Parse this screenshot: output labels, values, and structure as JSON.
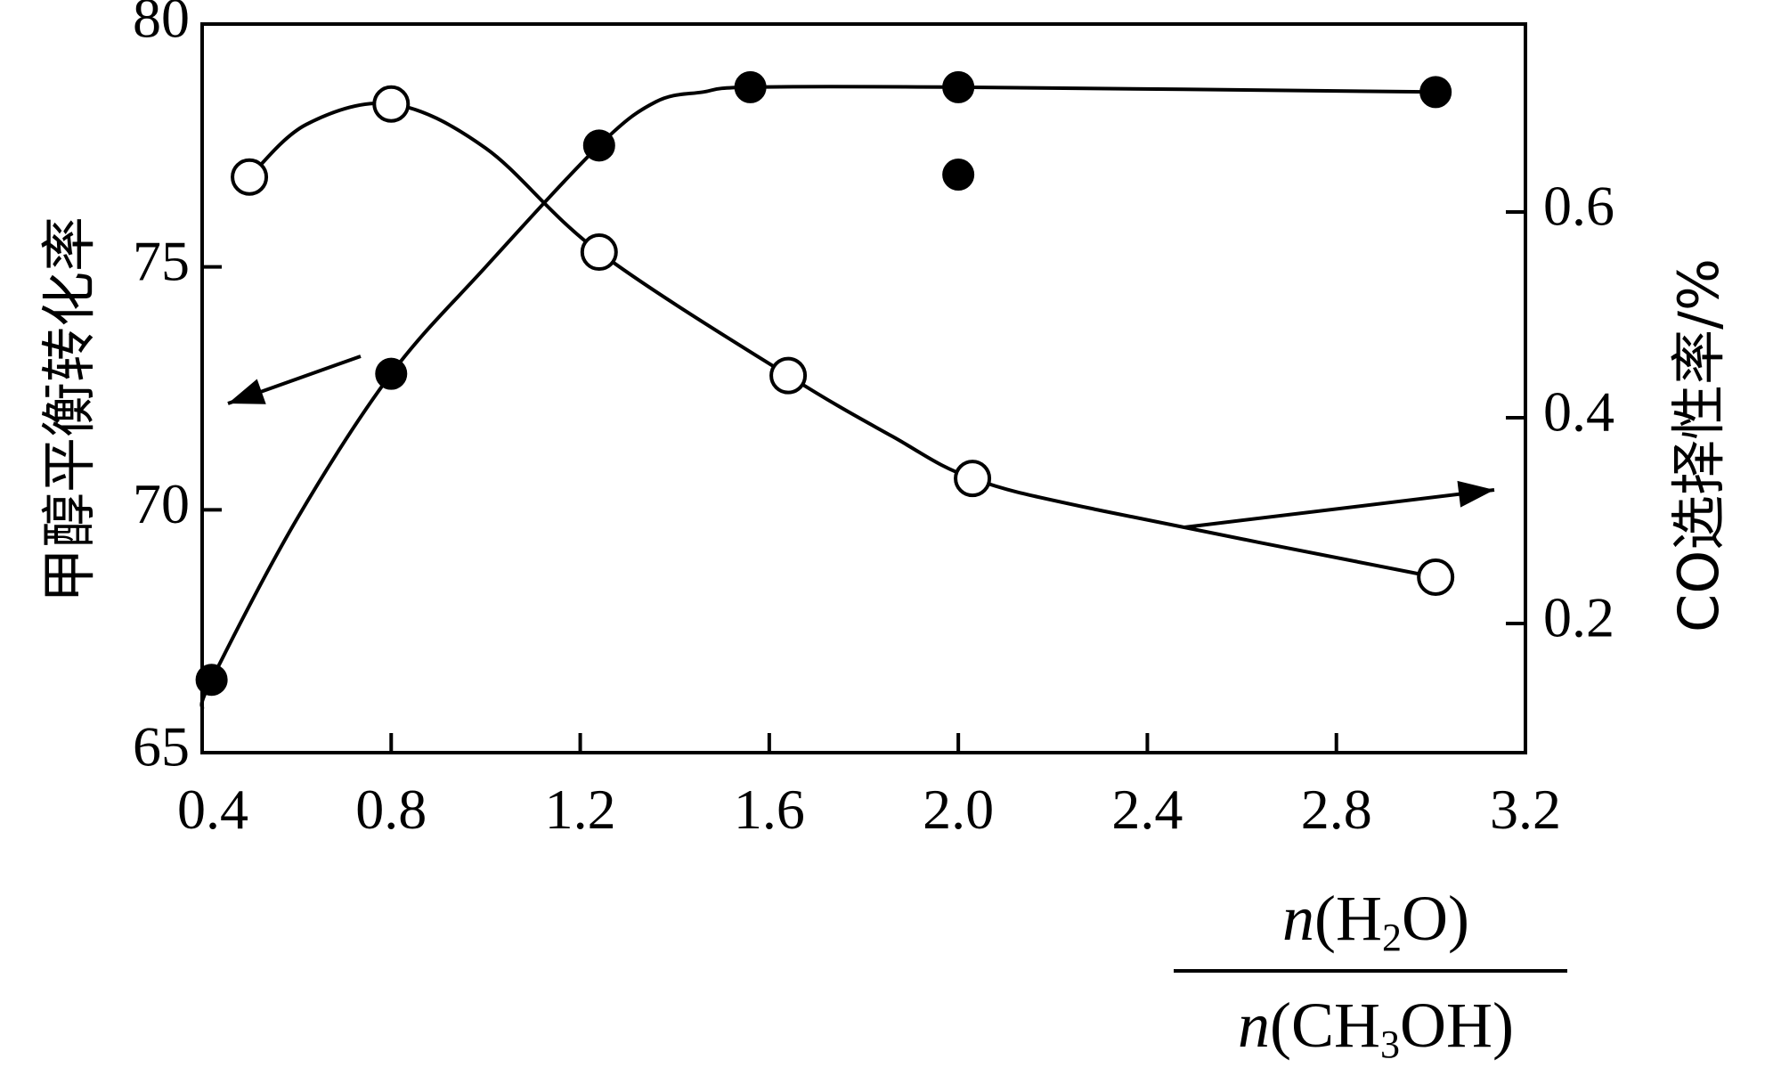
{
  "chart_data": {
    "type": "line",
    "x_label": {
      "numerator": {
        "n": "n",
        "open": "(H",
        "sub": "2",
        "close": "O)"
      },
      "denominator": {
        "n": "n",
        "open": "(CH",
        "sub": "3",
        "close": "OH)"
      }
    },
    "y_left_label": "甲醇平衡转化率",
    "y_right_label": "CO选择性率/%",
    "x_range": [
      0.4,
      3.2
    ],
    "x_ticks": [
      "0.4",
      "0.8",
      "1.2",
      "1.6",
      "2.0",
      "2.4",
      "2.8",
      "3.2"
    ],
    "y_left_range": [
      65,
      80
    ],
    "y_left_ticks": [
      "65",
      "70",
      "75",
      "80"
    ],
    "y_right_ticks": [
      "0.2",
      "0.4",
      "0.6"
    ],
    "series": [
      {
        "marker": "filled-circle",
        "axis": "left",
        "points": [
          [
            0.42,
            66.5
          ],
          [
            0.8,
            72.8
          ],
          [
            1.24,
            77.5
          ],
          [
            1.56,
            78.7
          ],
          [
            2.0,
            78.7
          ],
          [
            3.01,
            78.6
          ]
        ],
        "extra_points": [
          [
            2.0,
            76.9
          ]
        ],
        "curve": [
          [
            0.4,
            65.9
          ],
          [
            0.42,
            66.5
          ],
          [
            0.6,
            69.8
          ],
          [
            0.8,
            72.8
          ],
          [
            1.0,
            75.0
          ],
          [
            1.24,
            77.5
          ],
          [
            1.36,
            78.4
          ],
          [
            1.46,
            78.6
          ],
          [
            1.56,
            78.7
          ],
          [
            2.0,
            78.7
          ],
          [
            3.01,
            78.6
          ]
        ]
      },
      {
        "marker": "open-circle",
        "axis": "right",
        "points": [
          [
            0.5,
            0.634
          ],
          [
            0.8,
            0.705
          ],
          [
            1.24,
            0.561
          ],
          [
            1.64,
            0.441
          ],
          [
            2.03,
            0.341
          ],
          [
            3.01,
            0.245
          ]
        ],
        "curve": [
          [
            0.5,
            0.634
          ],
          [
            0.62,
            0.685
          ],
          [
            0.8,
            0.705
          ],
          [
            1.0,
            0.662
          ],
          [
            1.24,
            0.561
          ],
          [
            1.64,
            0.441
          ],
          [
            1.86,
            0.382
          ],
          [
            2.03,
            0.341
          ],
          [
            2.3,
            0.31
          ],
          [
            3.01,
            0.245
          ]
        ]
      }
    ],
    "annotations": [
      {
        "type": "arrow",
        "points_to": "left-axis"
      },
      {
        "type": "arrow",
        "points_to": "right-axis"
      }
    ]
  }
}
